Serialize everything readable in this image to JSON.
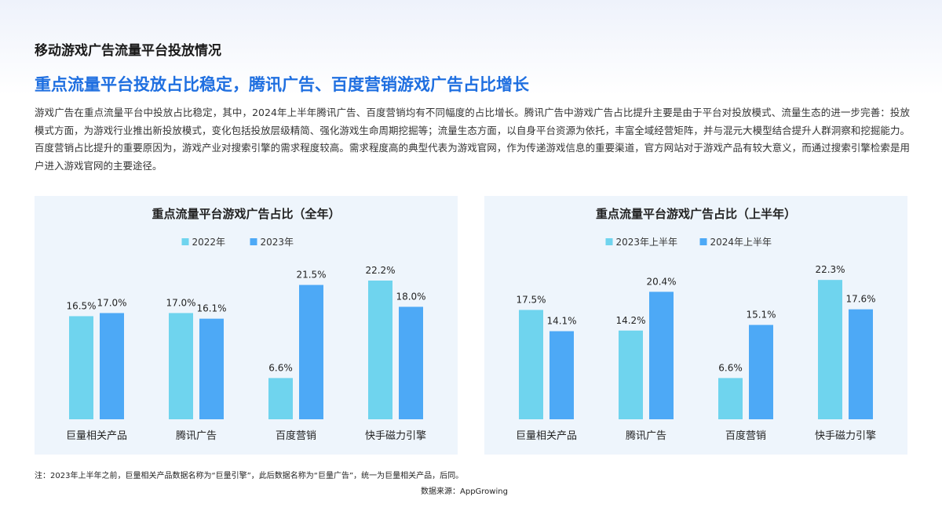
{
  "header": {
    "title": "移动游戏广告流量平台投放情况",
    "headline": "重点流量平台投放占比稳定，腾讯广告、百度营销游戏广告占比增长",
    "paragraph": "游戏广告在重点流量平台中投放占比稳定，其中，2024年上半年腾讯广告、百度营销均有不同幅度的占比增长。腾讯广告中游戏广告占比提升主要是由于平台对投放模式、流量生态的进一步完善：投放模式方面，为游戏行业推出新投放模式，变化包括投放层级精简、强化游戏生命周期挖掘等；流量生态方面，以自身平台资源为依托，丰富全域经营矩阵，并与混元大模型结合提升人群洞察和挖掘能力。百度营销占比提升的重要原因为，游戏产业对搜索引擎的需求程度较高。需求程度高的典型代表为游戏官网，作为传递游戏信息的重要渠道，官方网站对于游戏产品有较大意义，而通过搜索引擎检索是用户进入游戏官网的主要途径。"
  },
  "chart_data": [
    {
      "type": "bar",
      "title": "重点流量平台游戏广告占比（全年）",
      "categories": [
        "巨量相关产品",
        "腾讯广告",
        "百度营销",
        "快手磁力引擎"
      ],
      "series": [
        {
          "name": "2022年",
          "values": [
            16.5,
            17.0,
            6.6,
            22.2
          ],
          "labels": [
            "16.5%",
            "17.0%",
            "6.6%",
            "22.2%"
          ],
          "color": "#6fd4ee"
        },
        {
          "name": "2023年",
          "values": [
            17.0,
            16.1,
            21.5,
            18.0
          ],
          "labels": [
            "17.0%",
            "16.1%",
            "21.5%",
            "18.0%"
          ],
          "color": "#4da9f6"
        }
      ],
      "legend": "top",
      "grid": false,
      "ylim": [
        0,
        25
      ]
    },
    {
      "type": "bar",
      "title": "重点流量平台游戏广告占比（上半年）",
      "categories": [
        "巨量相关产品",
        "腾讯广告",
        "百度营销",
        "快手磁力引擎"
      ],
      "series": [
        {
          "name": "2023年上半年",
          "values": [
            17.5,
            14.2,
            6.6,
            22.3
          ],
          "labels": [
            "17.5%",
            "14.2%",
            "6.6%",
            "22.3%"
          ],
          "color": "#6fd4ee"
        },
        {
          "name": "2024年上半年",
          "values": [
            14.1,
            20.4,
            15.1,
            17.6
          ],
          "labels": [
            "14.1%",
            "20.4%",
            "15.1%",
            "17.6%"
          ],
          "color": "#4da9f6"
        }
      ],
      "legend": "top",
      "grid": false,
      "ylim": [
        0,
        25
      ]
    }
  ],
  "footer": {
    "note": "注：2023年上半年之前，巨量相关产品数据名称为“巨量引擎”，此后数据名称为“巨量广告”，统一为巨量相关产品，后同。",
    "source": "数据来源：AppGrowing"
  }
}
